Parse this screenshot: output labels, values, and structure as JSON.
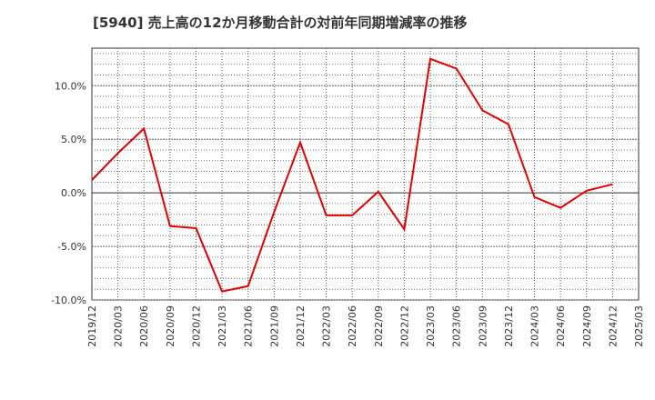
{
  "chart_data": {
    "type": "line",
    "title": "[5940]  売上高の12か月移動合計の対前年同期増減率の推移",
    "xlabel": "",
    "ylabel": "",
    "ylim": [
      -10,
      13.5
    ],
    "yticks": [
      -10,
      -5,
      0,
      5,
      10
    ],
    "ytick_labels": [
      "-10.0%",
      "-5.0%",
      "0.0%",
      "5.0%",
      "10.0%"
    ],
    "x_ticks": [
      "2019/12",
      "2020/03",
      "2020/06",
      "2020/09",
      "2020/12",
      "2021/03",
      "2021/06",
      "2021/09",
      "2021/12",
      "2022/03",
      "2022/06",
      "2022/09",
      "2022/12",
      "2023/03",
      "2023/06",
      "2023/09",
      "2023/12",
      "2024/03",
      "2024/06",
      "2024/09",
      "2024/12",
      "2025/03"
    ],
    "grid": true,
    "series": [
      {
        "name": "増減率",
        "color": "#e60000",
        "x": [
          "2019/12",
          "2020/03",
          "2020/06",
          "2020/09",
          "2020/12",
          "2021/03",
          "2021/06",
          "2021/09",
          "2021/12",
          "2022/03",
          "2022/06",
          "2022/09",
          "2022/12",
          "2023/03",
          "2023/06",
          "2023/09",
          "2023/12",
          "2024/03",
          "2024/06",
          "2024/09",
          "2024/12"
        ],
        "values": [
          1.2,
          3.7,
          6.0,
          -3.1,
          -3.3,
          -9.2,
          -8.7,
          -1.8,
          4.7,
          -2.1,
          -2.1,
          0.1,
          -3.4,
          12.5,
          11.6,
          7.7,
          6.4,
          -0.4,
          -1.4,
          0.2,
          0.8
        ]
      }
    ]
  }
}
